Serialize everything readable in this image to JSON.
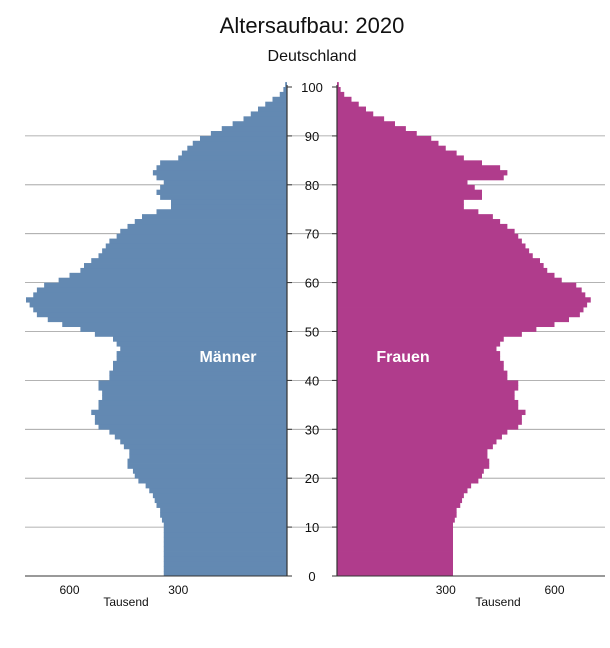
{
  "chart_data": {
    "type": "bar",
    "orientation": "horizontal-population-pyramid",
    "title": "Altersaufbau: 2020",
    "subtitle": "Deutschland",
    "age_ticks": [
      "0",
      "10",
      "20",
      "30",
      "40",
      "50",
      "60",
      "70",
      "80",
      "90",
      "100"
    ],
    "x_ticks": {
      "left": [
        "600",
        "300"
      ],
      "right": [
        "300",
        "600"
      ]
    },
    "x_tick_values": [
      300,
      600
    ],
    "xlabel": "Tausend",
    "xlim": [
      0,
      720
    ],
    "ylim": [
      0,
      100
    ],
    "age_step": 1,
    "grid": "horizontal every 10 years",
    "colors": {
      "maenner": "#6389b2",
      "frauen": "#b03c8c"
    },
    "series": [
      {
        "name": "Männer",
        "ages_from": 0,
        "values": [
          340,
          340,
          340,
          340,
          340,
          340,
          340,
          340,
          340,
          340,
          340,
          345,
          350,
          350,
          360,
          365,
          370,
          380,
          390,
          410,
          420,
          425,
          440,
          440,
          435,
          435,
          450,
          460,
          475,
          490,
          520,
          530,
          530,
          540,
          520,
          520,
          510,
          510,
          520,
          520,
          490,
          490,
          480,
          480,
          470,
          470,
          460,
          470,
          480,
          530,
          570,
          620,
          660,
          690,
          700,
          710,
          720,
          700,
          690,
          670,
          630,
          600,
          570,
          560,
          540,
          520,
          510,
          500,
          490,
          470,
          460,
          440,
          420,
          400,
          360,
          320,
          320,
          350,
          360,
          350,
          340,
          360,
          370,
          360,
          350,
          300,
          290,
          275,
          260,
          240,
          210,
          180,
          150,
          120,
          100,
          80,
          60,
          40,
          20,
          10,
          5
        ]
      },
      {
        "name": "Frauen",
        "ages_from": 0,
        "values": [
          320,
          320,
          320,
          320,
          320,
          320,
          320,
          320,
          320,
          320,
          320,
          325,
          330,
          330,
          340,
          345,
          350,
          360,
          370,
          390,
          400,
          405,
          420,
          420,
          415,
          415,
          430,
          440,
          455,
          470,
          500,
          510,
          510,
          520,
          500,
          500,
          490,
          490,
          500,
          500,
          470,
          470,
          460,
          460,
          450,
          450,
          440,
          450,
          460,
          510,
          550,
          600,
          640,
          670,
          680,
          690,
          700,
          685,
          675,
          660,
          620,
          600,
          580,
          570,
          560,
          540,
          530,
          520,
          510,
          500,
          490,
          470,
          450,
          430,
          390,
          350,
          350,
          400,
          400,
          380,
          360,
          460,
          470,
          450,
          400,
          350,
          330,
          300,
          280,
          260,
          220,
          190,
          160,
          130,
          100,
          80,
          60,
          40,
          20,
          10,
          5
        ]
      }
    ],
    "inline_labels": [
      "Männer",
      "Frauen"
    ]
  }
}
